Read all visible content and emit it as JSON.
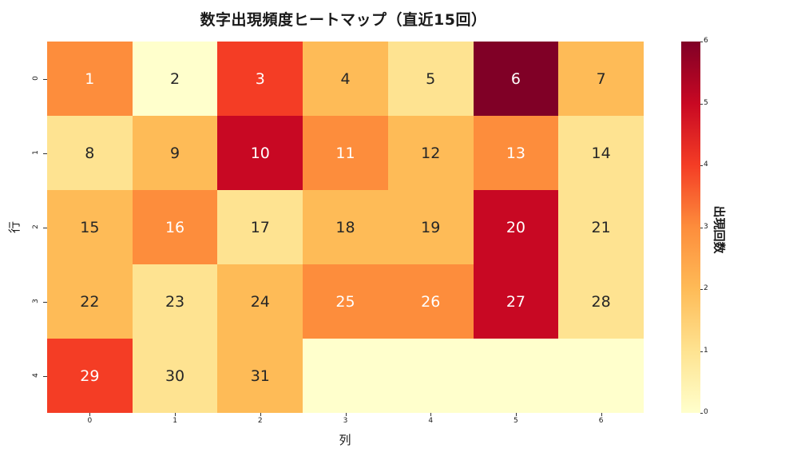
{
  "chart_data": {
    "type": "heatmap",
    "title": "数字出現頻度ヒートマップ（直近15回）",
    "xlabel": "列",
    "ylabel": "行",
    "x_ticks": [
      "0",
      "1",
      "2",
      "3",
      "4",
      "5",
      "6"
    ],
    "y_ticks": [
      "0",
      "1",
      "2",
      "3",
      "4"
    ],
    "annotations": [
      [
        "1",
        "2",
        "3",
        "4",
        "5",
        "6",
        "7"
      ],
      [
        "8",
        "9",
        "10",
        "11",
        "12",
        "13",
        "14"
      ],
      [
        "15",
        "16",
        "17",
        "18",
        "19",
        "20",
        "21"
      ],
      [
        "22",
        "23",
        "24",
        "25",
        "26",
        "27",
        "28"
      ],
      [
        "29",
        "30",
        "31",
        "",
        "",
        "",
        ""
      ]
    ],
    "values": [
      [
        3,
        0,
        4,
        2,
        1,
        6,
        2
      ],
      [
        1,
        2,
        5,
        3,
        2,
        3,
        1
      ],
      [
        2,
        3,
        1,
        2,
        2,
        5,
        1
      ],
      [
        2,
        1,
        2,
        3,
        3,
        5,
        1
      ],
      [
        4,
        1,
        2,
        0,
        0,
        0,
        0
      ]
    ],
    "colormap": "YlOrRd",
    "vmin": 0,
    "vmax": 6,
    "colorbar_label": "出現回数",
    "colorbar_ticks": [
      "0",
      "1",
      "2",
      "3",
      "4",
      "5",
      "6"
    ],
    "color_scale": {
      "0": "#ffffcc",
      "1": "#fee391",
      "2": "#febb57",
      "3": "#fd8d3c",
      "4": "#f43d25",
      "5": "#c80823",
      "6": "#800026"
    }
  }
}
